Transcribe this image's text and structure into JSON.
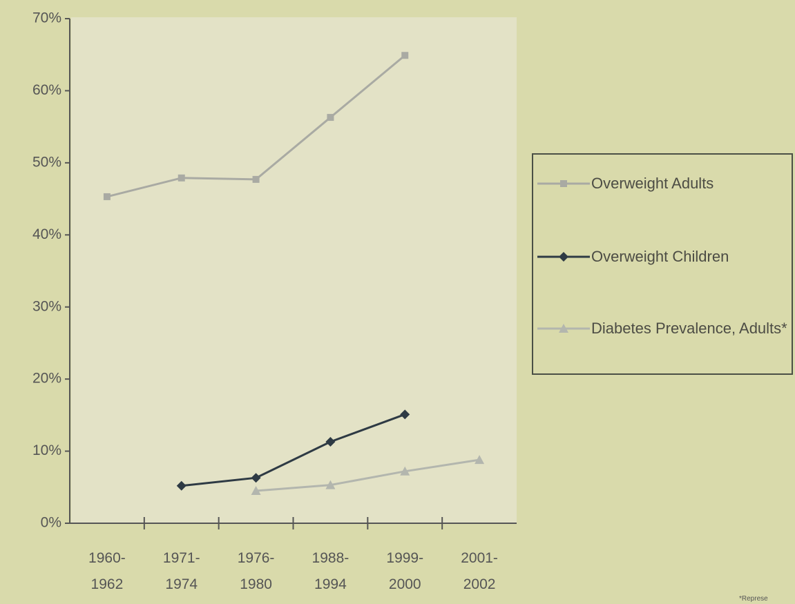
{
  "chart_data": {
    "type": "line",
    "categories": [
      "1960-1962",
      "1971-1974",
      "1976-1980",
      "1988-1994",
      "1999-2000",
      "2001-2002"
    ],
    "series": [
      {
        "name": "Overweight Adults",
        "color": "#a9aaa3",
        "marker": "square",
        "values": [
          45.3,
          47.9,
          47.7,
          56.3,
          64.9,
          null
        ]
      },
      {
        "name": "Overweight Children",
        "color": "#2e3a44",
        "marker": "diamond",
        "values": [
          null,
          5.2,
          6.3,
          11.3,
          15.1,
          null
        ]
      },
      {
        "name": "Diabetes Prevalence, Adults*",
        "color": "#b3b6ae",
        "marker": "triangle",
        "values": [
          null,
          null,
          4.5,
          5.3,
          7.2,
          8.8
        ]
      }
    ],
    "ylim": [
      0,
      70
    ],
    "yticks": [
      {
        "value": 0,
        "label": "0%"
      },
      {
        "value": 10,
        "label": "10%"
      },
      {
        "value": 20,
        "label": "20%"
      },
      {
        "value": 30,
        "label": "30%"
      },
      {
        "value": 40,
        "label": "40%"
      },
      {
        "value": 50,
        "label": "50%"
      },
      {
        "value": 60,
        "label": "60%"
      },
      {
        "value": 70,
        "label": "70%"
      }
    ],
    "legend": "right",
    "footnote": "*Represe"
  }
}
